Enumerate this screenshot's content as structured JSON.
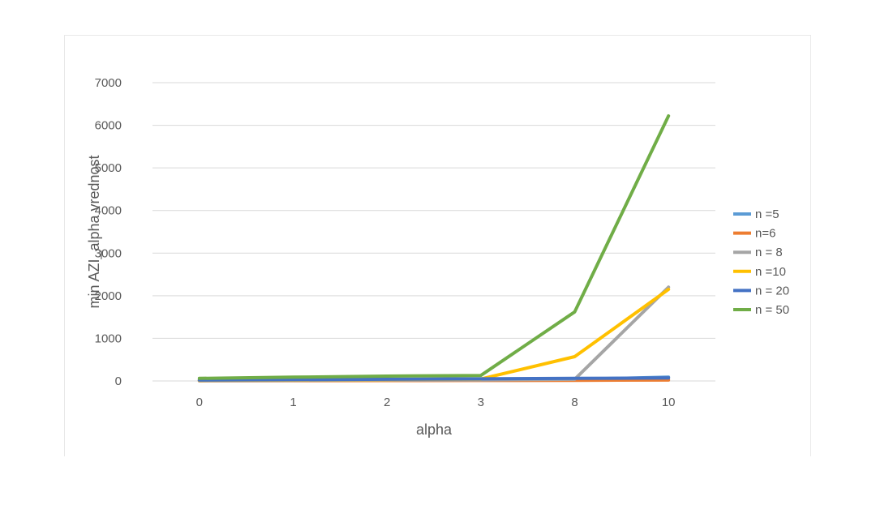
{
  "chart_data": {
    "type": "line",
    "title": "",
    "xlabel": "alpha",
    "ylabel": "min AZI_alpha vrednost",
    "categories": [
      "0",
      "1",
      "2",
      "3",
      "8",
      "10"
    ],
    "ylim": [
      0,
      7000
    ],
    "yticks": [
      0,
      1000,
      2000,
      3000,
      4000,
      5000,
      6000,
      7000
    ],
    "grid": true,
    "legend_position": "right",
    "series": [
      {
        "name": "n =5",
        "color": "#5b9bd5",
        "values": [
          5,
          10,
          15,
          20,
          40,
          90
        ]
      },
      {
        "name": "n=6",
        "color": "#ed7d31",
        "values": [
          5,
          8,
          10,
          12,
          15,
          20
        ]
      },
      {
        "name": "n = 8",
        "color": "#a5a5a5",
        "values": [
          10,
          15,
          20,
          25,
          40,
          2200
        ]
      },
      {
        "name": "n =10",
        "color": "#ffc000",
        "values": [
          15,
          25,
          35,
          45,
          570,
          2150
        ]
      },
      {
        "name": "n = 20",
        "color": "#4472c4",
        "values": [
          20,
          30,
          40,
          50,
          60,
          70
        ]
      },
      {
        "name": "n = 50",
        "color": "#70ad47",
        "values": [
          60,
          90,
          115,
          130,
          1620,
          6220
        ]
      }
    ]
  }
}
